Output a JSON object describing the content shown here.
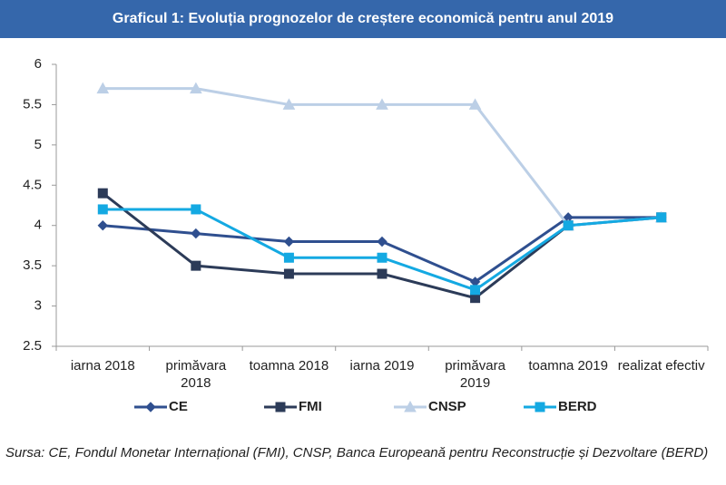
{
  "chart_data": {
    "type": "line",
    "title": "Graficul 1: Evoluția prognozelor de creștere economică pentru anul 2019",
    "categories": [
      "iarna 2018",
      "primăvara 2018",
      "toamna 2018",
      "iarna 2019",
      "primăvara 2019",
      "toamna 2019",
      "realizat efectiv"
    ],
    "series": [
      {
        "name": "CE",
        "color": "#2f4f8f",
        "marker": "diamond",
        "values": [
          4.0,
          3.9,
          3.8,
          3.8,
          3.3,
          4.1,
          4.1
        ]
      },
      {
        "name": "FMI",
        "color": "#2c3b58",
        "marker": "square",
        "values": [
          4.4,
          3.5,
          3.4,
          3.4,
          3.1,
          4.0,
          4.1
        ]
      },
      {
        "name": "CNSP",
        "color": "#bccfe6",
        "marker": "triangle",
        "values": [
          5.7,
          5.7,
          5.5,
          5.5,
          5.5,
          4.0,
          4.1
        ]
      },
      {
        "name": "BERD",
        "color": "#14a9e2",
        "marker": "square",
        "values": [
          4.2,
          4.2,
          3.6,
          3.6,
          3.2,
          4.0,
          4.1
        ]
      }
    ],
    "ylim": [
      2.5,
      6
    ],
    "yticks": [
      2.5,
      3,
      3.5,
      4,
      4.5,
      5,
      5.5,
      6
    ],
    "grid": false,
    "legend": "bottom",
    "source": "Sursa: CE, Fondul Monetar Internațional (FMI), CNSP, Banca Europeană pentru Reconstrucție și Dezvoltare (BERD)"
  }
}
